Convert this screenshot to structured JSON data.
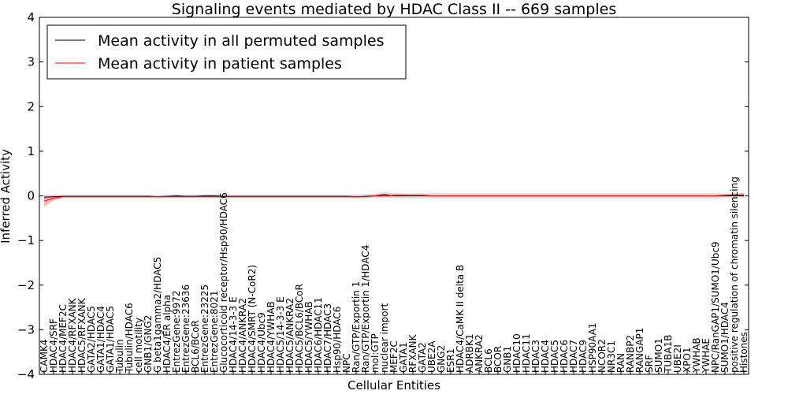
{
  "chart_data": {
    "type": "line",
    "title": "Signaling events mediated by HDAC Class II -- 669 samples",
    "xlabel": "Cellular Entities",
    "ylabel": "Inferred Activity",
    "ylim": [
      -4,
      4
    ],
    "yticks": [
      -4,
      -3,
      -2,
      -1,
      0,
      1,
      2,
      3,
      4
    ],
    "ytick_labels": [
      "−4",
      "−3",
      "−2",
      "−1",
      "0",
      "1",
      "2",
      "3",
      "4"
    ],
    "grid": false,
    "legend_position": "top-left",
    "colors": {
      "permuted": "#000000",
      "patient": "#ff0000",
      "permuted_band": "#bbbbbb",
      "patient_band": "#ff8080"
    },
    "categories": [
      "CAMK4",
      "HDAC4/SRF",
      "HDAC4/MEF2C",
      "HDAC4/RFXANK",
      "HDAC5/RFXANK",
      "GATA2/HDAC5",
      "GATA1/HDAC4",
      "GATA1/HDAC5",
      "Tubulin",
      "Tubulin/HDAC6",
      "cell motility",
      "GNB1/GNG2",
      "G beta1gamma2/HDAC5",
      "HDAC4/ER alpha",
      "EntrezGene:9972",
      "EntrezGene:23636",
      "BCL6/BCoR",
      "EntrezGene:23225",
      "EntrezGene:8021",
      "Glucocorticoid receptor/Hsp90/HDAC6",
      "HDAC4/14-3-3 E",
      "HDAC4/ANKRA2",
      "HDAC4/SMRT (N-CoR2)",
      "HDAC4/Ubc9",
      "HDAC4/YWHAB",
      "HDAC5/14-3-3 E",
      "HDAC5/ANKRA2",
      "HDAC5/BCL6/BCoR",
      "HDAC5/YWHAB",
      "HDAC6/HDAC11",
      "HDAC7/HDAC3",
      "Hsp90/HDAC6",
      "NPC",
      "Ran/GTP/Exportin 1",
      "Ran/GTP/Exportin 1/HDAC4",
      "mol:GTP",
      "nuclear import",
      "MEF2C",
      "GATA1",
      "RFXANK",
      "GATA2",
      "UBE2A",
      "GNG2",
      "ESR1",
      "HDAC4/CaMK II delta B",
      "ADRBK1",
      "ANKRA2",
      "BCL6",
      "BCOR",
      "GNB1",
      "HDAC10",
      "HDAC11",
      "HDAC3",
      "HDAC4",
      "HDAC5",
      "HDAC6",
      "HDAC7",
      "HDAC9",
      "HSP90AA1",
      "NCOR2",
      "NR3C1",
      "RAN",
      "RANBP2",
      "RANGAP1",
      "SRF",
      "SUMO1",
      "TUBA1B",
      "UBE2I",
      "XPO1",
      "YWHAB",
      "YWHAE",
      "NPC/RanGAP1/SUMO1/Ubc9",
      "SUMO1/HDAC4",
      "positive regulation of chromatin silencing",
      "Histones"
    ],
    "series": [
      {
        "name": "Mean activity in all permuted samples",
        "values": [
          -0.03,
          -0.02,
          -0.01,
          -0.01,
          -0.01,
          -0.01,
          -0.01,
          -0.01,
          -0.01,
          -0.01,
          -0.01,
          -0.01,
          -0.02,
          -0.01,
          0.0,
          -0.01,
          -0.01,
          0.0,
          0.0,
          -0.01,
          -0.01,
          -0.01,
          -0.01,
          -0.01,
          -0.01,
          -0.01,
          -0.01,
          -0.01,
          -0.01,
          -0.01,
          -0.01,
          -0.01,
          -0.01,
          -0.02,
          -0.01,
          0.0,
          0.03,
          0.0,
          0.0,
          0.0,
          0.0,
          0.0,
          0.0,
          0.0,
          0.0,
          0.0,
          0.0,
          0.0,
          0.0,
          0.0,
          0.0,
          0.0,
          0.0,
          0.0,
          0.0,
          0.0,
          0.0,
          0.0,
          0.0,
          0.0,
          0.0,
          0.0,
          0.0,
          0.0,
          0.0,
          0.0,
          0.0,
          0.0,
          0.0,
          0.0,
          0.0,
          0.0,
          0.0,
          0.0,
          0.0
        ],
        "band_half_width": [
          0.06,
          0.05,
          0.04,
          0.04,
          0.04,
          0.04,
          0.04,
          0.04,
          0.04,
          0.04,
          0.04,
          0.04,
          0.04,
          0.04,
          0.04,
          0.04,
          0.04,
          0.04,
          0.04,
          0.04,
          0.04,
          0.04,
          0.04,
          0.04,
          0.04,
          0.04,
          0.04,
          0.04,
          0.04,
          0.04,
          0.04,
          0.04,
          0.04,
          0.05,
          0.05,
          0.05,
          0.07,
          0.06,
          0.06,
          0.06,
          0.06,
          0.06,
          0.06,
          0.06,
          0.06,
          0.06,
          0.06,
          0.06,
          0.06,
          0.06,
          0.06,
          0.06,
          0.06,
          0.06,
          0.06,
          0.06,
          0.06,
          0.06,
          0.06,
          0.06,
          0.06,
          0.06,
          0.06,
          0.06,
          0.06,
          0.06,
          0.06,
          0.06,
          0.06,
          0.06,
          0.06,
          0.06,
          0.05,
          0.05,
          0.05
        ]
      },
      {
        "name": "Mean activity in patient samples",
        "values": [
          -0.12,
          -0.05,
          -0.02,
          -0.02,
          -0.02,
          -0.02,
          -0.02,
          -0.02,
          -0.02,
          -0.02,
          -0.02,
          -0.02,
          -0.02,
          -0.02,
          -0.02,
          -0.02,
          -0.02,
          -0.02,
          -0.02,
          -0.02,
          -0.02,
          -0.02,
          -0.02,
          -0.02,
          -0.02,
          -0.02,
          -0.02,
          -0.02,
          -0.02,
          -0.02,
          -0.02,
          -0.02,
          -0.02,
          -0.02,
          -0.02,
          0.0,
          0.0,
          0.01,
          0.01,
          0.01,
          0.01,
          0.0,
          0.0,
          0.0,
          0.0,
          0.0,
          0.0,
          0.0,
          0.0,
          0.0,
          0.0,
          0.0,
          0.0,
          0.0,
          0.0,
          0.0,
          0.0,
          0.0,
          0.0,
          0.0,
          0.0,
          0.0,
          0.0,
          0.0,
          0.0,
          0.0,
          0.0,
          0.0,
          0.0,
          0.0,
          0.0,
          0.0,
          0.01,
          0.02,
          0.02
        ],
        "band_half_width": [
          0.12,
          0.05,
          0.02,
          0.02,
          0.02,
          0.02,
          0.02,
          0.02,
          0.02,
          0.02,
          0.02,
          0.02,
          0.02,
          0.02,
          0.02,
          0.02,
          0.02,
          0.02,
          0.02,
          0.02,
          0.02,
          0.02,
          0.02,
          0.02,
          0.02,
          0.02,
          0.02,
          0.02,
          0.02,
          0.02,
          0.02,
          0.02,
          0.02,
          0.02,
          0.02,
          0.02,
          0.02,
          0.03,
          0.03,
          0.02,
          0.02,
          0.02,
          0.02,
          0.02,
          0.02,
          0.02,
          0.02,
          0.02,
          0.02,
          0.02,
          0.02,
          0.02,
          0.02,
          0.02,
          0.02,
          0.02,
          0.02,
          0.02,
          0.02,
          0.02,
          0.02,
          0.02,
          0.02,
          0.02,
          0.02,
          0.02,
          0.02,
          0.02,
          0.02,
          0.02,
          0.02,
          0.02,
          0.03,
          0.03,
          0.04
        ]
      }
    ]
  }
}
